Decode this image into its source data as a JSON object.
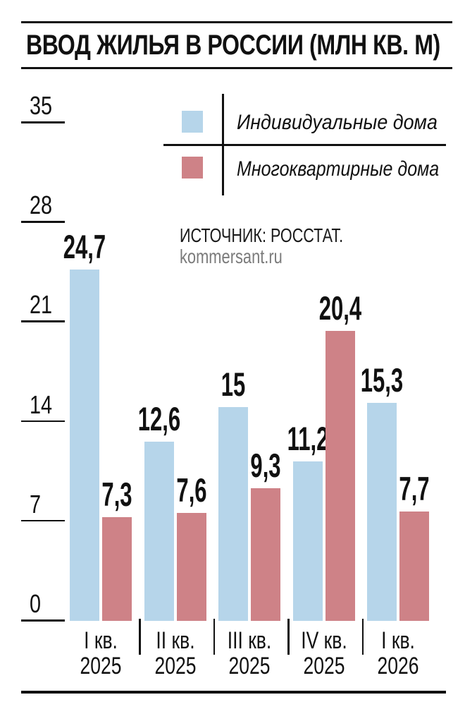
{
  "page": {
    "title": "ВВОД ЖИЛЬЯ В РОССИИ (МЛН КВ. М)"
  },
  "legend": {
    "items": [
      {
        "label": "Индивидуальные дома",
        "color": "#b6d5ea"
      },
      {
        "label": "Многоквартирные дома",
        "color": "#ce8287"
      }
    ]
  },
  "source": {
    "line1": "ИСТОЧНИК: РОССТАТ.",
    "line2": "kommersant.ru"
  },
  "chart_data": {
    "type": "bar",
    "title": "ВВОД ЖИЛЬЯ В РОССИИ (МЛН КВ. М)",
    "categories": [
      "I кв. 2025",
      "II кв. 2025",
      "III кв. 2025",
      "IV кв. 2025",
      "I кв. 2026"
    ],
    "category_lines": [
      [
        "I кв.",
        "2025"
      ],
      [
        "II кв.",
        "2025"
      ],
      [
        "III кв.",
        "2025"
      ],
      [
        "IV кв.",
        "2025"
      ],
      [
        "I кв.",
        "2026"
      ]
    ],
    "series": [
      {
        "name": "Индивидуальные дома",
        "color": "#b6d5ea",
        "values": [
          24.7,
          12.6,
          15,
          11.2,
          15.3
        ],
        "labels": [
          "24,7",
          "12,6",
          "15",
          "11,2",
          "15,3"
        ]
      },
      {
        "name": "Многоквартирные дома",
        "color": "#ce8287",
        "values": [
          7.3,
          7.6,
          9.3,
          20.4,
          7.7
        ],
        "labels": [
          "7,3",
          "7,6",
          "9,3",
          "20,4",
          "7,7"
        ]
      }
    ],
    "yticks": [
      0,
      7,
      14,
      21,
      28,
      35
    ],
    "ylim": [
      0,
      35
    ],
    "grid": false,
    "legend_position": "top-center",
    "xlabel": "",
    "ylabel": ""
  },
  "colors": {
    "text": "#111111",
    "muted": "#7b7b7b",
    "rule": "#111111"
  }
}
